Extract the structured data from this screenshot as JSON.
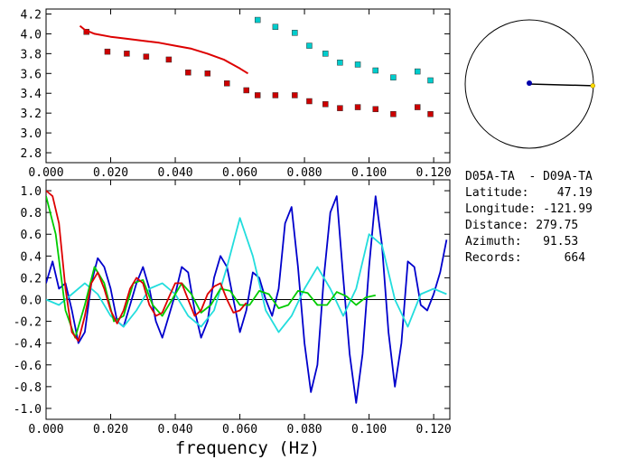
{
  "chart_data": [
    {
      "type": "scatter",
      "xlim": [
        0.0,
        0.125
      ],
      "ylim": [
        2.7,
        4.25
      ],
      "x_ticks": [
        "0.000",
        "0.020",
        "0.040",
        "0.060",
        "0.080",
        "0.100",
        "0.120"
      ],
      "y_ticks": [
        "2.8",
        "3.0",
        "3.2",
        "3.4",
        "3.6",
        "3.8",
        "4.0",
        "4.2"
      ],
      "series": [
        {
          "kind": "points",
          "color": "#cc0000",
          "x": [
            0.0125,
            0.019,
            0.025,
            0.031,
            0.038,
            0.044,
            0.05,
            0.056,
            0.062,
            0.0655,
            0.071,
            0.077,
            0.0815,
            0.0865,
            0.091,
            0.0965,
            0.102,
            0.1075,
            0.115,
            0.119
          ],
          "y": [
            4.02,
            3.82,
            3.8,
            3.77,
            3.74,
            3.61,
            3.6,
            3.5,
            3.43,
            3.38,
            3.38,
            3.38,
            3.32,
            3.29,
            3.25,
            3.26,
            3.24,
            3.19,
            3.26,
            3.19
          ]
        },
        {
          "kind": "points",
          "color": "#00cccc",
          "x": [
            0.0655,
            0.071,
            0.077,
            0.0815,
            0.0865,
            0.091,
            0.0965,
            0.102,
            0.1075,
            0.115,
            0.119
          ],
          "y": [
            4.14,
            4.07,
            4.01,
            3.88,
            3.8,
            3.71,
            3.69,
            3.63,
            3.56,
            3.62,
            3.53
          ]
        },
        {
          "kind": "line",
          "color": "#dd0000",
          "x": [
            0.0105,
            0.012,
            0.015,
            0.02,
            0.025,
            0.03,
            0.035,
            0.04,
            0.045,
            0.05,
            0.055,
            0.06,
            0.0625
          ],
          "y": [
            4.08,
            4.04,
            4.0,
            3.97,
            3.95,
            3.93,
            3.91,
            3.88,
            3.85,
            3.8,
            3.74,
            3.65,
            3.6
          ]
        }
      ]
    },
    {
      "type": "line",
      "xlim": [
        0.0,
        0.125
      ],
      "ylim": [
        -1.1,
        1.1
      ],
      "xlabel": "frequency (Hz)",
      "x_ticks": [
        "0.000",
        "0.020",
        "0.040",
        "0.060",
        "0.080",
        "0.100",
        "0.120"
      ],
      "y_ticks": [
        "1.0",
        "0.8",
        "0.6",
        "0.4",
        "0.2",
        "0.0",
        "-0.2",
        "-0.4",
        "-0.6",
        "-0.8",
        "-1.0"
      ],
      "series": [
        {
          "color": "#0000cc",
          "x": [
            0.0,
            0.002,
            0.004,
            0.006,
            0.008,
            0.01,
            0.012,
            0.014,
            0.016,
            0.018,
            0.02,
            0.022,
            0.024,
            0.026,
            0.028,
            0.03,
            0.032,
            0.034,
            0.036,
            0.038,
            0.04,
            0.042,
            0.044,
            0.046,
            0.048,
            0.05,
            0.052,
            0.054,
            0.056,
            0.058,
            0.06,
            0.062,
            0.064,
            0.066,
            0.068,
            0.07,
            0.072,
            0.074,
            0.076,
            0.078,
            0.08,
            0.082,
            0.084,
            0.086,
            0.088,
            0.09,
            0.092,
            0.094,
            0.096,
            0.098,
            0.1,
            0.102,
            0.104,
            0.106,
            0.108,
            0.11,
            0.112,
            0.114,
            0.116,
            0.118,
            0.12,
            0.122,
            0.124
          ],
          "y": [
            0.15,
            0.35,
            0.1,
            0.15,
            -0.1,
            -0.4,
            -0.3,
            0.15,
            0.38,
            0.3,
            0.1,
            -0.2,
            -0.25,
            -0.05,
            0.15,
            0.3,
            0.1,
            -0.2,
            -0.35,
            -0.15,
            0.05,
            0.3,
            0.25,
            -0.1,
            -0.35,
            -0.2,
            0.2,
            0.4,
            0.3,
            0.0,
            -0.3,
            -0.1,
            0.25,
            0.2,
            0.0,
            -0.15,
            0.1,
            0.7,
            0.85,
            0.3,
            -0.4,
            -0.85,
            -0.6,
            0.2,
            0.8,
            0.95,
            0.2,
            -0.5,
            -0.95,
            -0.5,
            0.3,
            0.95,
            0.5,
            -0.3,
            -0.8,
            -0.4,
            0.35,
            0.3,
            -0.05,
            -0.1,
            0.05,
            0.25,
            0.55
          ]
        },
        {
          "color": "#22dddd",
          "x": [
            0.0,
            0.004,
            0.008,
            0.012,
            0.016,
            0.02,
            0.024,
            0.028,
            0.032,
            0.036,
            0.04,
            0.044,
            0.048,
            0.052,
            0.056,
            0.06,
            0.064,
            0.068,
            0.072,
            0.076,
            0.08,
            0.084,
            0.088,
            0.092,
            0.096,
            0.1,
            0.104,
            0.108,
            0.112,
            0.116,
            0.12,
            0.124
          ],
          "y": [
            0.0,
            -0.05,
            0.05,
            0.15,
            0.05,
            -0.15,
            -0.25,
            -0.1,
            0.1,
            0.15,
            0.05,
            -0.15,
            -0.25,
            -0.1,
            0.3,
            0.75,
            0.4,
            -0.1,
            -0.3,
            -0.15,
            0.1,
            0.3,
            0.1,
            -0.15,
            0.1,
            0.6,
            0.5,
            0.0,
            -0.25,
            0.05,
            0.1,
            0.05
          ]
        },
        {
          "color": "#00cc00",
          "x": [
            0.0,
            0.003,
            0.006,
            0.009,
            0.012,
            0.015,
            0.018,
            0.021,
            0.024,
            0.027,
            0.03,
            0.033,
            0.036,
            0.039,
            0.042,
            0.045,
            0.048,
            0.051,
            0.054,
            0.057,
            0.06,
            0.063,
            0.066,
            0.069,
            0.072,
            0.075,
            0.078,
            0.081,
            0.084,
            0.087,
            0.09,
            0.093,
            0.096,
            0.099,
            0.102
          ],
          "y": [
            0.95,
            0.6,
            -0.1,
            -0.35,
            -0.05,
            0.3,
            0.15,
            -0.2,
            -0.15,
            0.15,
            0.18,
            -0.05,
            -0.15,
            0.0,
            0.15,
            0.05,
            -0.12,
            -0.05,
            0.1,
            0.08,
            -0.05,
            -0.05,
            0.08,
            0.05,
            -0.08,
            -0.05,
            0.08,
            0.06,
            -0.05,
            -0.05,
            0.07,
            0.03,
            -0.05,
            0.02,
            0.04
          ]
        },
        {
          "color": "#dd0000",
          "x": [
            0.0,
            0.002,
            0.004,
            0.006,
            0.008,
            0.01,
            0.012,
            0.014,
            0.016,
            0.018,
            0.02,
            0.022,
            0.024,
            0.026,
            0.028,
            0.03,
            0.032,
            0.034,
            0.036,
            0.038,
            0.04,
            0.042,
            0.044,
            0.046,
            0.048,
            0.05,
            0.052,
            0.054,
            0.056,
            0.058,
            0.06,
            0.062
          ],
          "y": [
            1.0,
            0.95,
            0.7,
            0.1,
            -0.3,
            -0.38,
            -0.15,
            0.15,
            0.25,
            0.1,
            -0.1,
            -0.22,
            -0.1,
            0.1,
            0.2,
            0.15,
            -0.05,
            -0.15,
            -0.12,
            0.02,
            0.15,
            0.15,
            0.0,
            -0.15,
            -0.1,
            0.05,
            0.12,
            0.15,
            0.0,
            -0.12,
            -0.1,
            -0.03
          ]
        }
      ]
    }
  ],
  "azimuth_plot": {
    "azimuth_deg": 91.53,
    "distance_fraction": 0.99
  },
  "info": {
    "title": "D05A-TA  - D09A-TA",
    "latitude": "Latitude:    47.19",
    "longitude": "Longitude: -121.99",
    "distance": "Distance: 279.75",
    "azimuth": "Azimuth:   91.53",
    "records": "Records:      664"
  }
}
